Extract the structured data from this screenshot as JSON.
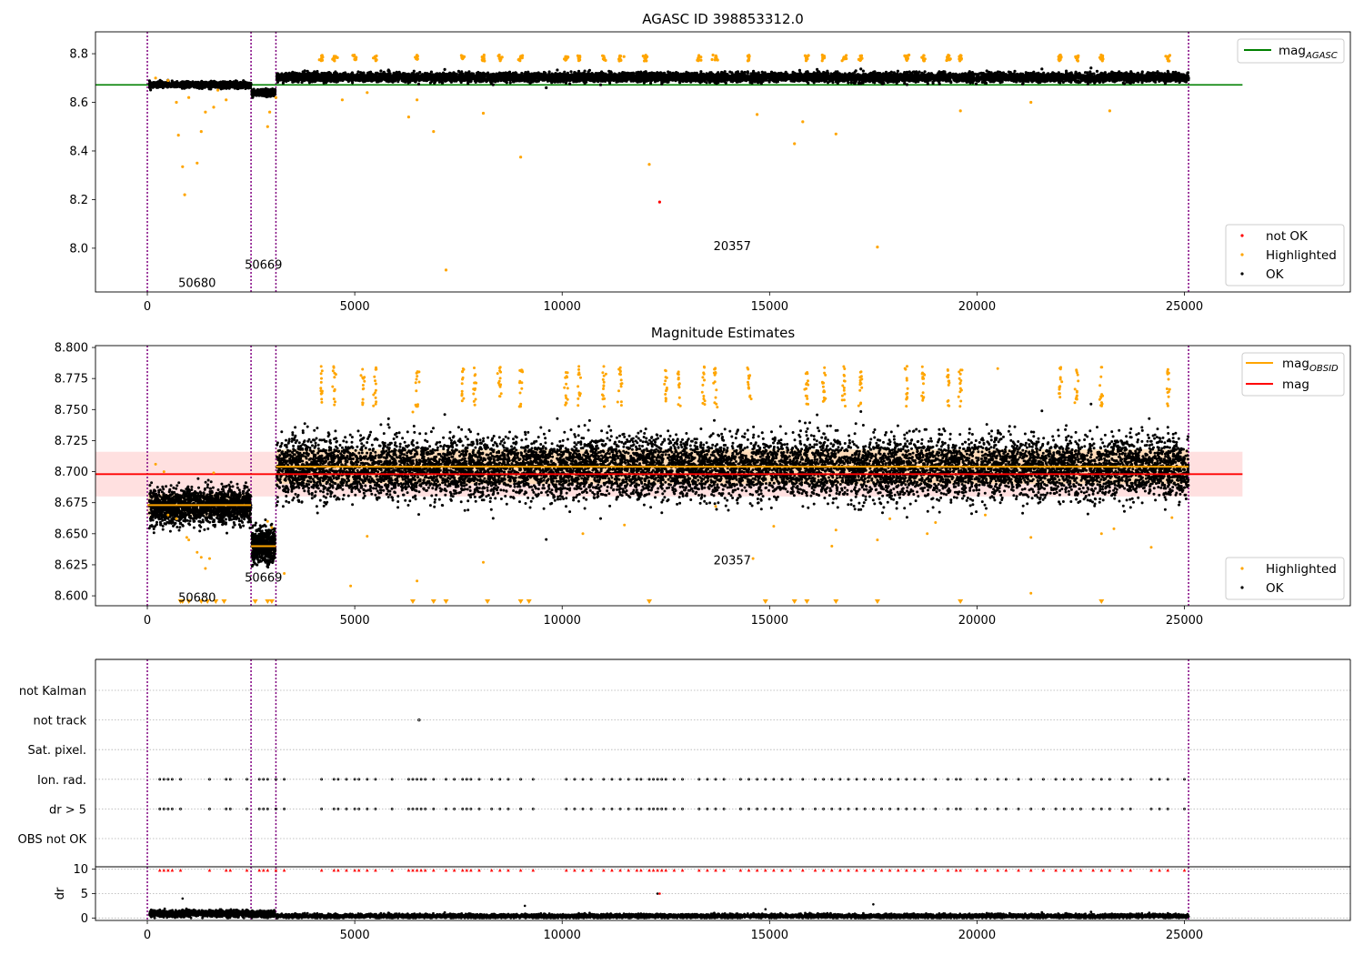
{
  "figure": {
    "title": "AGASC ID 398853312.0",
    "type": "scatter"
  },
  "colors": {
    "ok": "#000000",
    "highlighted": "#ffa500",
    "not_ok": "#ff0000",
    "agasc_line": "#008000",
    "mag_line": "#ff0000",
    "mag_band": "#ffcccc",
    "obsid_line": "#ffa500",
    "obsid_band": "#ffd8a8",
    "obsid_vline": "#800080",
    "grid": "#b0b0b0"
  },
  "chart_data": [
    {
      "id": "top",
      "type": "scatter",
      "title": "AGASC ID 398853312.0",
      "xlim": [
        -1250,
        29000
      ],
      "ylim": [
        7.82,
        8.89
      ],
      "xticks": [
        0,
        5000,
        10000,
        15000,
        20000,
        25000
      ],
      "yticks": [
        8.0,
        8.2,
        8.4,
        8.6,
        8.8
      ],
      "ytick_labels": [
        "8.0",
        "8.2",
        "8.4",
        "8.6",
        "8.8"
      ],
      "hlines": [
        {
          "name": "mag_AGASC",
          "y": 8.672,
          "x": [
            -1250,
            26400
          ],
          "color": "#008000"
        }
      ],
      "obsid_boundaries": [
        0,
        2500,
        3100,
        25100
      ],
      "obsid_labels": [
        {
          "text": "50680",
          "x": 1200,
          "y": 7.86
        },
        {
          "text": "50669",
          "x": 2800,
          "y": 7.935
        },
        {
          "text": "20357",
          "x": 14100,
          "y": 8.01
        }
      ],
      "segments": [
        {
          "x": [
            50,
            2500
          ],
          "mean": 8.672,
          "sd": 0.006
        },
        {
          "x": [
            2520,
            3080
          ],
          "mean": 8.64,
          "sd": 0.006
        },
        {
          "x": [
            3120,
            25100
          ],
          "mean": 8.703,
          "sd": 0.009
        }
      ],
      "highlighted_groups": [
        4200,
        4500,
        5000,
        5500,
        6500,
        7600,
        8100,
        8500,
        9000,
        10100,
        10400,
        11000,
        11400,
        12000,
        13300,
        13700,
        14500,
        15900,
        16300,
        16800,
        17200,
        18300,
        18700,
        19300,
        19600,
        22000,
        22400,
        23000,
        24600
      ],
      "highlighted_points": [
        [
          200,
          8.7
        ],
        [
          500,
          8.69
        ],
        [
          700,
          8.6
        ],
        [
          750,
          8.465
        ],
        [
          850,
          8.335
        ],
        [
          900,
          8.22
        ],
        [
          1000,
          8.62
        ],
        [
          1200,
          8.35
        ],
        [
          1300,
          8.48
        ],
        [
          1400,
          8.56
        ],
        [
          1600,
          8.58
        ],
        [
          1700,
          8.65
        ],
        [
          1900,
          8.61
        ],
        [
          2900,
          8.5
        ],
        [
          2950,
          8.56
        ],
        [
          3100,
          8.62
        ],
        [
          4700,
          8.61
        ],
        [
          5300,
          8.64
        ],
        [
          6300,
          8.54
        ],
        [
          6500,
          8.61
        ],
        [
          7200,
          7.91
        ],
        [
          6900,
          8.48
        ],
        [
          8100,
          8.555
        ],
        [
          9000,
          8.375
        ],
        [
          12100,
          8.345
        ],
        [
          14700,
          8.55
        ],
        [
          15600,
          8.43
        ],
        [
          15800,
          8.52
        ],
        [
          16600,
          8.47
        ],
        [
          17600,
          8.005
        ],
        [
          19600,
          8.565
        ],
        [
          21300,
          8.6
        ],
        [
          23200,
          8.565
        ]
      ],
      "not_ok_points": [
        [
          12350,
          8.19
        ]
      ],
      "legend_series": {
        "lines": [
          "mag_AGASC"
        ],
        "points": [
          "not OK",
          "Highlighted",
          "OK"
        ]
      }
    },
    {
      "id": "middle",
      "type": "scatter",
      "title": "Magnitude Estimates",
      "xlim": [
        -1250,
        29000
      ],
      "ylim": [
        8.592,
        8.8015
      ],
      "xticks": [
        0,
        5000,
        10000,
        15000,
        20000,
        25000
      ],
      "yticks": [
        8.6,
        8.625,
        8.65,
        8.675,
        8.7,
        8.725,
        8.75,
        8.775,
        8.8
      ],
      "ytick_labels": [
        "8.600",
        "8.625",
        "8.650",
        "8.675",
        "8.700",
        "8.725",
        "8.750",
        "8.775",
        "8.800"
      ],
      "hlines": [
        {
          "name": "mag",
          "y": 8.698,
          "x": [
            -1250,
            26400
          ],
          "color": "#ff0000",
          "band": [
            8.68,
            8.716
          ]
        }
      ],
      "obsid_mags": [
        {
          "x": [
            0,
            2500
          ],
          "mag": 8.673,
          "band": [
            8.664,
            8.682
          ]
        },
        {
          "x": [
            2500,
            3100
          ],
          "mag": 8.64,
          "band": [
            8.633,
            8.647
          ]
        },
        {
          "x": [
            3100,
            25100
          ],
          "mag": 8.704,
          "band": [
            8.69,
            8.718
          ]
        }
      ],
      "obsid_boundaries": [
        0,
        2500,
        3100,
        25100
      ],
      "obsid_labels": [
        {
          "text": "50680",
          "x": 1200,
          "y": 8.599
        },
        {
          "text": "50669",
          "x": 2800,
          "y": 8.615
        },
        {
          "text": "20357",
          "x": 14100,
          "y": 8.629
        }
      ],
      "segments": [
        {
          "x": [
            50,
            2500
          ],
          "mean": 8.672,
          "sd": 0.007
        },
        {
          "x": [
            2520,
            3080
          ],
          "mean": 8.64,
          "sd": 0.007
        },
        {
          "x": [
            3120,
            25100
          ],
          "mean": 8.703,
          "sd": 0.012
        }
      ],
      "highlighted_groups": [
        4200,
        4500,
        5200,
        5500,
        6500,
        7600,
        7900,
        8500,
        9000,
        10100,
        10400,
        11000,
        11400,
        12500,
        12800,
        13400,
        13700,
        14500,
        15900,
        16300,
        16800,
        17200,
        18300,
        18700,
        19300,
        19600,
        22000,
        22400,
        23000,
        24600
      ],
      "highlighted_points": [
        [
          200,
          8.706
        ],
        [
          400,
          8.7
        ],
        [
          500,
          8.665
        ],
        [
          700,
          8.662
        ],
        [
          950,
          8.647
        ],
        [
          1000,
          8.645
        ],
        [
          1200,
          8.635
        ],
        [
          1300,
          8.631
        ],
        [
          1400,
          8.622
        ],
        [
          1500,
          8.63
        ],
        [
          1600,
          8.699
        ],
        [
          2900,
          8.66
        ],
        [
          3000,
          8.655
        ],
        [
          3300,
          8.618
        ],
        [
          4900,
          8.608
        ],
        [
          5300,
          8.648
        ],
        [
          6400,
          8.748
        ],
        [
          6500,
          8.612
        ],
        [
          8100,
          8.627
        ],
        [
          10500,
          8.65
        ],
        [
          11500,
          8.657
        ],
        [
          13700,
          8.672
        ],
        [
          15100,
          8.656
        ],
        [
          16500,
          8.64
        ],
        [
          16600,
          8.653
        ],
        [
          17600,
          8.645
        ],
        [
          17900,
          8.662
        ],
        [
          18800,
          8.65
        ],
        [
          19000,
          8.659
        ],
        [
          20200,
          8.665
        ],
        [
          20500,
          8.783
        ],
        [
          21300,
          8.602
        ],
        [
          21300,
          8.647
        ],
        [
          23000,
          8.65
        ],
        [
          23300,
          8.654
        ],
        [
          24200,
          8.639
        ],
        [
          24700,
          8.663
        ],
        [
          14600,
          8.63
        ]
      ],
      "triangle_markers": [
        800,
        850,
        1000,
        1300,
        1450,
        1650,
        1850,
        2600,
        2900,
        3000,
        6400,
        6900,
        7200,
        8200,
        9000,
        9200,
        12100,
        14900,
        15600,
        15900,
        16600,
        17600,
        19600,
        23000
      ],
      "legend_series": {
        "lines": [
          "mag_OBSID",
          "mag"
        ],
        "points": [
          "Highlighted",
          "OK"
        ]
      }
    },
    {
      "id": "flags",
      "type": "scatter",
      "xlim": [
        -1250,
        29000
      ],
      "categories": [
        "not Kalman",
        "not track",
        "Sat. pixel.",
        "Ion. rad.",
        "dr > 5",
        "OBS not OK"
      ],
      "obsid_boundaries": [
        0,
        2500,
        3100,
        25100
      ],
      "flag_points": {
        "not track": [
          6550
        ],
        "Ion. rad.": "matches dr > 5",
        "dr > 5": [
          300,
          400,
          500,
          600,
          800,
          1500,
          1900,
          2000,
          2400,
          2700,
          2800,
          2900,
          3100,
          3300,
          4200,
          4500,
          4600,
          4800,
          5000,
          5100,
          5300,
          5500,
          5900,
          6300,
          6400,
          6500,
          6600,
          6700,
          6900,
          7200,
          7400,
          7600,
          7700,
          7800,
          8000,
          8300,
          8500,
          8700,
          9000,
          9300,
          10100,
          10300,
          10500,
          10700,
          11000,
          11200,
          11400,
          11600,
          11800,
          11900,
          12100,
          12200,
          12300,
          12400,
          12500,
          12700,
          12900,
          13300,
          13500,
          13700,
          13900,
          14300,
          14500,
          14700,
          14900,
          15100,
          15300,
          15500,
          15800,
          16100,
          16300,
          16500,
          16700,
          16900,
          17100,
          17300,
          17500,
          17700,
          17900,
          18100,
          18300,
          18500,
          18700,
          19000,
          19300,
          19500,
          19600,
          20000,
          20200,
          20500,
          20700,
          21000,
          21300,
          21600,
          21900,
          22100,
          22300,
          22500,
          22800,
          23000,
          23200,
          23500,
          23700,
          24200,
          24400,
          24600,
          25000
        ]
      }
    },
    {
      "id": "dr",
      "type": "scatter",
      "xlim": [
        -1250,
        29000
      ],
      "ylim": [
        -0.5,
        10.5
      ],
      "ylabel": "dr",
      "xticks": [
        0,
        5000,
        10000,
        15000,
        20000,
        25000
      ],
      "yticks": [
        0,
        5,
        10
      ],
      "ytick_labels": [
        "0",
        "5",
        "10"
      ],
      "segments": [
        {
          "x": [
            50,
            2500
          ],
          "mean": 0.9,
          "sd": 0.35
        },
        {
          "x": [
            2520,
            3080
          ],
          "mean": 0.8,
          "sd": 0.3
        },
        {
          "x": [
            3120,
            25100
          ],
          "mean": 0.4,
          "sd": 0.2
        }
      ],
      "outliers": [
        [
          850,
          4.0
        ],
        [
          9100,
          2.5
        ],
        [
          12300,
          5.0
        ],
        [
          17500,
          2.8
        ],
        [
          14900,
          1.8
        ]
      ],
      "clipped_note": "red triangles at dr = 10 mark values above the axis range"
    }
  ]
}
